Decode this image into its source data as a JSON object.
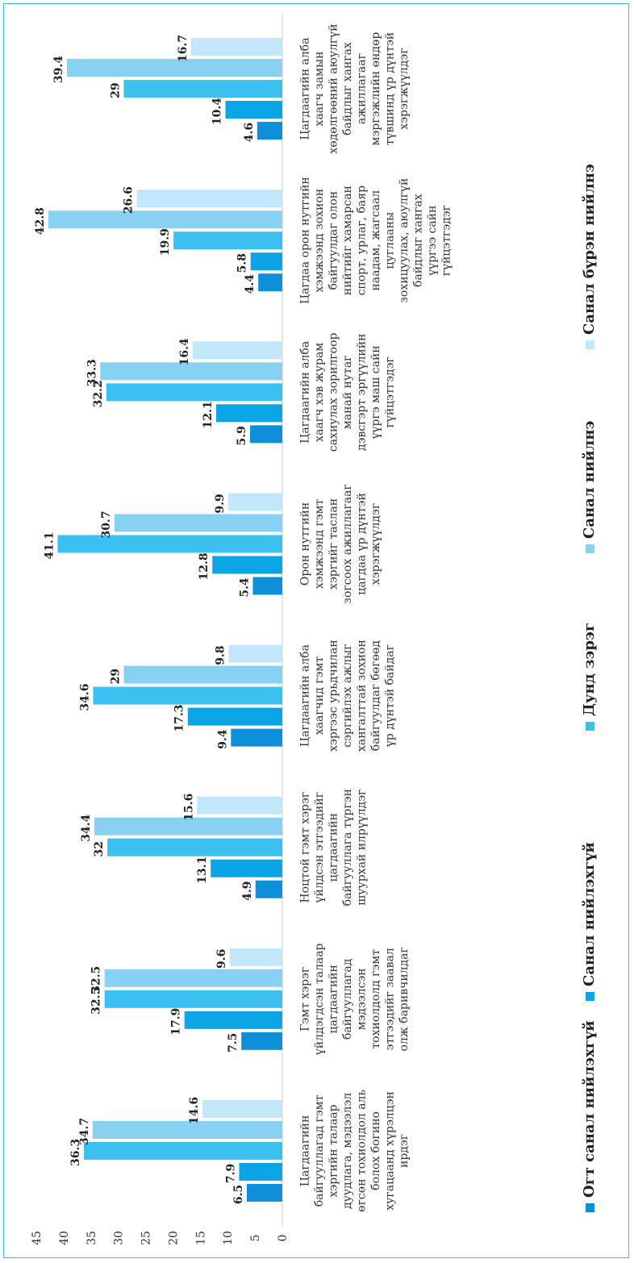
{
  "chart_data": {
    "type": "bar",
    "orientation": "vertical",
    "categories": [
      "Цагдаагийн байгууллагад гэмт хэргийн талаар дуудлага, мэдээлэл өгсөн тохиолдол аль болох богино хугацаанд хүрэлцэн ирдэг",
      "Гэмт хэрэг үйлдэгдсэн талаар цагдаагийн байгууллагад мэдээлсэн тохиолдолд гэмт этгээдийг заавал олж баривчилдаг",
      "Ноцтой гэмт хэрэг үйлдсэн этгээдийг цагдаагийн байгууллага түргэн шуурхай илрүүлдэг",
      "Цагдаагийн алба хаагчид гэмт хэргээс урьдчилан сэргийлэх ажлыг хангалттай зохион байгуулдаг бөгөөд үр дүнтэй байдаг",
      "Орон нутгийн хэмжээнд гэмт хэргийг таслан зогсоох ажиллагааг цагдаа үр дүнтэй хэрэгжүүлдэг",
      "Цагдаагийн алба хаагч хэв журам сахиулах зорилгоор манай нутаг дэвсгэрт эргүүлийн үүргэ маш сайн гүйцэтгэдэг",
      "Цагдаа орон нутгийн хэмжээнд зохион байгуулдаг олон нийтийг хамарсан спорт, урлаг, баяр наадам, жагсаал цуглааны зохицуулах, аюулгүй байдлыг хангах үүргээ сайн гүйцэтгэдэг",
      "Цагдаагийн алба хаагч замын хөдөлгөөний аюулгүй байдлыг хангах ажиллагааг мэргэжлийн өндөр түвшинд үр дүнтэй хэрэгжүүлдэг"
    ],
    "series": [
      {
        "name": "Огт санал нийлэхгүй",
        "values": [
          6.5,
          7.5,
          4.9,
          9.4,
          5.4,
          5.9,
          4.4,
          4.6
        ],
        "color": "#0e8fd9"
      },
      {
        "name": "Санал нийлэхгүй",
        "values": [
          7.9,
          17.9,
          13.1,
          17.3,
          12.8,
          12.1,
          5.8,
          10.4
        ],
        "color": "#0ba4e4"
      },
      {
        "name": "Дунд зэрэг",
        "values": [
          36.3,
          32.5,
          32,
          34.6,
          41.1,
          32.2,
          19.9,
          29
        ],
        "color": "#3cc0ef"
      },
      {
        "name": "Санал нийлнэ",
        "values": [
          34.7,
          32.5,
          34.4,
          29,
          30.7,
          33.3,
          42.8,
          39.4
        ],
        "color": "#88d1f3"
      },
      {
        "name": "Санал бүрэн нийлнэ",
        "values": [
          14.6,
          9.6,
          15.6,
          9.8,
          9.9,
          16.4,
          26.6,
          16.7
        ],
        "color": "#c3e7fa"
      }
    ],
    "yticks": [
      "0",
      "5",
      "10",
      "15",
      "20",
      "25",
      "30",
      "35",
      "40",
      "45"
    ],
    "ylim": [
      0,
      45
    ],
    "title": "",
    "xlabel": "",
    "ylabel": "",
    "grid": false,
    "legend_position": "bottom"
  }
}
